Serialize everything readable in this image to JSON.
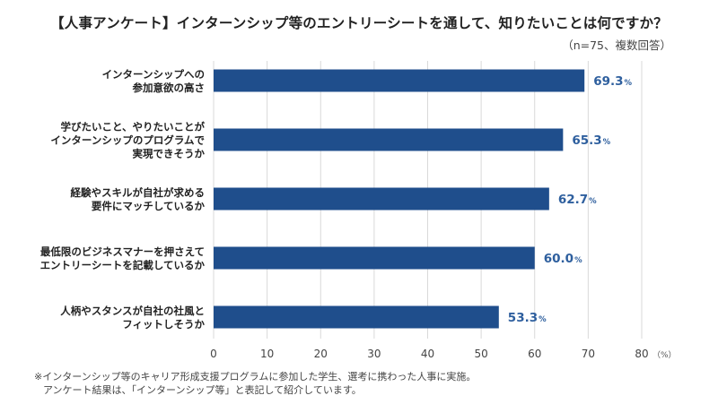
{
  "title": "【人事アンケート】インターンシップ等のエントリーシートを通して、知りたいことは何ですか？",
  "subtitle": "（n=75、複数回答）",
  "footnote": [
    "※インターンシップ等のキャリア形成支援プログラムに参加した学生、選考に携わった人事に実施。",
    "アンケート結果は、「インターンシップ等」と表記して紹介しています。"
  ],
  "chart_data": {
    "type": "bar",
    "orientation": "horizontal",
    "categories": [
      [
        "インターンシップへの",
        "参加意欲の高さ"
      ],
      [
        "学びたいこと、やりたいことが",
        "インターンシップのプログラムで",
        "実現できそうか"
      ],
      [
        "経験やスキルが自社が求める",
        "要件にマッチしているか"
      ],
      [
        "最低限のビジネスマナーを押さえて",
        "エントリーシートを記載しているか"
      ],
      [
        "人柄やスタンスが自社の社風と",
        "フィットしそうか"
      ]
    ],
    "values": [
      69.3,
      65.3,
      62.7,
      60.0,
      53.3
    ],
    "value_labels": [
      "69.3",
      "65.3",
      "62.7",
      "60.0",
      "53.3"
    ],
    "value_unit": "%",
    "xlim": [
      0,
      80
    ],
    "xticks": [
      0,
      10,
      20,
      30,
      40,
      50,
      60,
      70,
      80
    ],
    "xunit": "（%）",
    "grid": true,
    "bar_color": "#1f4e8c",
    "label_color": "#2e5f9e",
    "grid_color": "#d9d9d9"
  }
}
